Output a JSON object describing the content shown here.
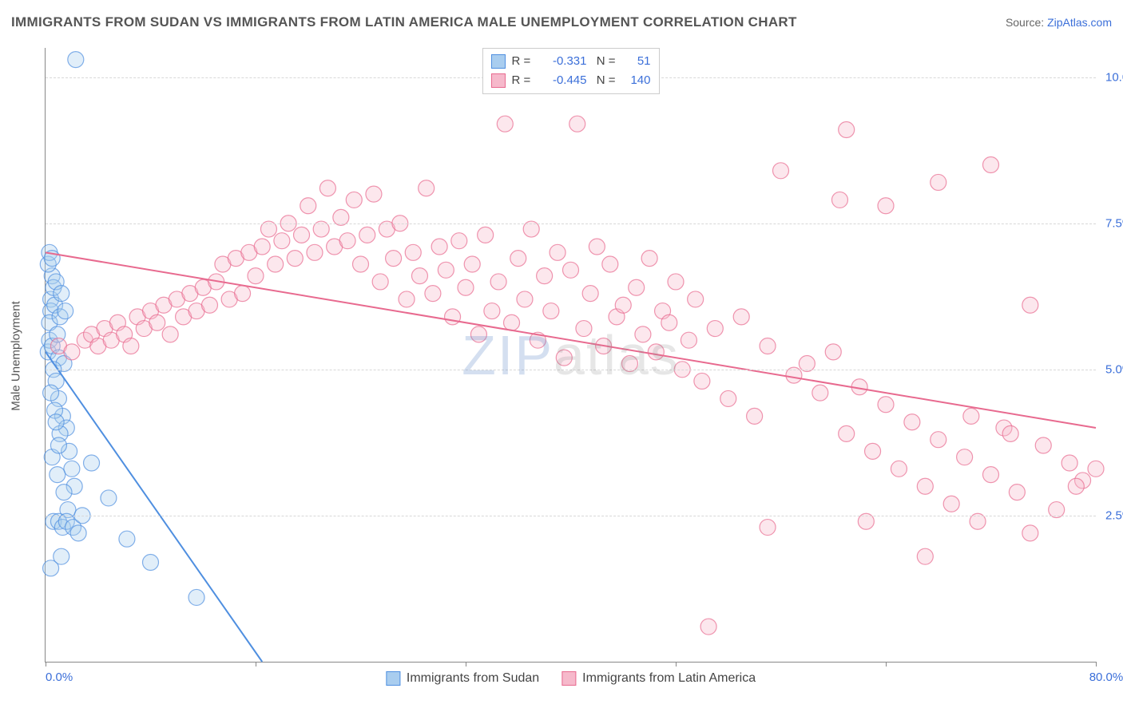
{
  "title": "IMMIGRANTS FROM SUDAN VS IMMIGRANTS FROM LATIN AMERICA MALE UNEMPLOYMENT CORRELATION CHART",
  "source_prefix": "Source: ",
  "source_link": "ZipAtlas.com",
  "yaxis_label": "Male Unemployment",
  "watermark": {
    "z_part": "ZIP",
    "rest_part": "atlas"
  },
  "chart": {
    "type": "scatter",
    "background_color": "#ffffff",
    "grid_color": "#d8d8d8",
    "grid_dash": "4,4",
    "axis_color": "#888888",
    "xlim": [
      0,
      80
    ],
    "ylim": [
      0,
      10.5
    ],
    "xticks": [
      0,
      16,
      32,
      48,
      64,
      80
    ],
    "xtick_labels_shown": {
      "0": "0.0%",
      "80": "80.0%"
    },
    "yticks": [
      2.5,
      5.0,
      7.5,
      10.0
    ],
    "ytick_labels": [
      "2.5%",
      "5.0%",
      "7.5%",
      "10.0%"
    ],
    "marker_radius": 10,
    "marker_fill_opacity": 0.35,
    "marker_stroke_width": 1.2,
    "trend_line_width": 2,
    "series": [
      {
        "name": "Immigrants from Sudan",
        "color": "#4f8fe0",
        "fill": "#a9cdef",
        "R": "-0.331",
        "N": "51",
        "trend": {
          "x1": 0,
          "y1": 5.3,
          "x2": 16.5,
          "y2": 0
        },
        "points": [
          [
            0.2,
            5.3
          ],
          [
            0.3,
            5.5
          ],
          [
            0.4,
            6.2
          ],
          [
            0.5,
            6.6
          ],
          [
            0.6,
            6.4
          ],
          [
            0.4,
            6.0
          ],
          [
            0.7,
            6.1
          ],
          [
            0.8,
            6.5
          ],
          [
            0.3,
            5.8
          ],
          [
            0.5,
            5.4
          ],
          [
            0.9,
            5.6
          ],
          [
            1.0,
            5.2
          ],
          [
            1.1,
            5.9
          ],
          [
            1.2,
            6.3
          ],
          [
            1.4,
            5.1
          ],
          [
            1.5,
            6.0
          ],
          [
            0.6,
            5.0
          ],
          [
            0.8,
            4.8
          ],
          [
            1.0,
            4.5
          ],
          [
            1.3,
            4.2
          ],
          [
            1.6,
            4.0
          ],
          [
            0.4,
            4.6
          ],
          [
            0.7,
            4.3
          ],
          [
            1.1,
            3.9
          ],
          [
            1.8,
            3.6
          ],
          [
            2.0,
            3.3
          ],
          [
            2.2,
            3.0
          ],
          [
            0.5,
            3.5
          ],
          [
            0.9,
            3.2
          ],
          [
            1.4,
            2.9
          ],
          [
            1.7,
            2.6
          ],
          [
            0.6,
            2.4
          ],
          [
            1.0,
            2.4
          ],
          [
            1.3,
            2.3
          ],
          [
            1.6,
            2.4
          ],
          [
            2.1,
            2.3
          ],
          [
            2.5,
            2.2
          ],
          [
            2.8,
            2.5
          ],
          [
            0.4,
            1.6
          ],
          [
            1.2,
            1.8
          ],
          [
            2.3,
            10.3
          ],
          [
            3.5,
            3.4
          ],
          [
            4.8,
            2.8
          ],
          [
            6.2,
            2.1
          ],
          [
            8.0,
            1.7
          ],
          [
            11.5,
            1.1
          ],
          [
            0.2,
            6.8
          ],
          [
            0.3,
            7.0
          ],
          [
            0.5,
            6.9
          ],
          [
            0.8,
            4.1
          ],
          [
            1.0,
            3.7
          ]
        ]
      },
      {
        "name": "Immigrants from Latin America",
        "color": "#e86a8f",
        "fill": "#f6b9cb",
        "R": "-0.445",
        "N": "140",
        "trend": {
          "x1": 0,
          "y1": 7.0,
          "x2": 80,
          "y2": 4.0
        },
        "points": [
          [
            1,
            5.4
          ],
          [
            2,
            5.3
          ],
          [
            3,
            5.5
          ],
          [
            3.5,
            5.6
          ],
          [
            4,
            5.4
          ],
          [
            4.5,
            5.7
          ],
          [
            5,
            5.5
          ],
          [
            5.5,
            5.8
          ],
          [
            6,
            5.6
          ],
          [
            6.5,
            5.4
          ],
          [
            7,
            5.9
          ],
          [
            7.5,
            5.7
          ],
          [
            8,
            6.0
          ],
          [
            8.5,
            5.8
          ],
          [
            9,
            6.1
          ],
          [
            9.5,
            5.6
          ],
          [
            10,
            6.2
          ],
          [
            10.5,
            5.9
          ],
          [
            11,
            6.3
          ],
          [
            11.5,
            6.0
          ],
          [
            12,
            6.4
          ],
          [
            12.5,
            6.1
          ],
          [
            13,
            6.5
          ],
          [
            13.5,
            6.8
          ],
          [
            14,
            6.2
          ],
          [
            14.5,
            6.9
          ],
          [
            15,
            6.3
          ],
          [
            15.5,
            7.0
          ],
          [
            16,
            6.6
          ],
          [
            16.5,
            7.1
          ],
          [
            17,
            7.4
          ],
          [
            17.5,
            6.8
          ],
          [
            18,
            7.2
          ],
          [
            18.5,
            7.5
          ],
          [
            19,
            6.9
          ],
          [
            19.5,
            7.3
          ],
          [
            20,
            7.8
          ],
          [
            20.5,
            7.0
          ],
          [
            21,
            7.4
          ],
          [
            21.5,
            8.1
          ],
          [
            22,
            7.1
          ],
          [
            22.5,
            7.6
          ],
          [
            23,
            7.2
          ],
          [
            23.5,
            7.9
          ],
          [
            24,
            6.8
          ],
          [
            24.5,
            7.3
          ],
          [
            25,
            8.0
          ],
          [
            25.5,
            6.5
          ],
          [
            26,
            7.4
          ],
          [
            26.5,
            6.9
          ],
          [
            27,
            7.5
          ],
          [
            27.5,
            6.2
          ],
          [
            28,
            7.0
          ],
          [
            28.5,
            6.6
          ],
          [
            29,
            8.1
          ],
          [
            29.5,
            6.3
          ],
          [
            30,
            7.1
          ],
          [
            30.5,
            6.7
          ],
          [
            31,
            5.9
          ],
          [
            31.5,
            7.2
          ],
          [
            32,
            6.4
          ],
          [
            32.5,
            6.8
          ],
          [
            33,
            5.6
          ],
          [
            33.5,
            7.3
          ],
          [
            34,
            6.0
          ],
          [
            34.5,
            6.5
          ],
          [
            35,
            9.2
          ],
          [
            35.5,
            5.8
          ],
          [
            36,
            6.9
          ],
          [
            36.5,
            6.2
          ],
          [
            37,
            7.4
          ],
          [
            37.5,
            5.5
          ],
          [
            38,
            6.6
          ],
          [
            38.5,
            6.0
          ],
          [
            39,
            7.0
          ],
          [
            39.5,
            5.2
          ],
          [
            40,
            6.7
          ],
          [
            40.5,
            9.2
          ],
          [
            41,
            5.7
          ],
          [
            41.5,
            6.3
          ],
          [
            42,
            7.1
          ],
          [
            42.5,
            5.4
          ],
          [
            43,
            6.8
          ],
          [
            43.5,
            5.9
          ],
          [
            44,
            6.1
          ],
          [
            44.5,
            5.1
          ],
          [
            45,
            6.4
          ],
          [
            45.5,
            5.6
          ],
          [
            46,
            6.9
          ],
          [
            46.5,
            5.3
          ],
          [
            47,
            6.0
          ],
          [
            47.5,
            5.8
          ],
          [
            48,
            6.5
          ],
          [
            48.5,
            5.0
          ],
          [
            49,
            5.5
          ],
          [
            49.5,
            6.2
          ],
          [
            50,
            4.8
          ],
          [
            51,
            5.7
          ],
          [
            52,
            4.5
          ],
          [
            53,
            5.9
          ],
          [
            54,
            4.2
          ],
          [
            55,
            5.4
          ],
          [
            56,
            8.4
          ],
          [
            57,
            4.9
          ],
          [
            58,
            5.1
          ],
          [
            59,
            4.6
          ],
          [
            60,
            5.3
          ],
          [
            61,
            3.9
          ],
          [
            61,
            9.1
          ],
          [
            62,
            4.7
          ],
          [
            63,
            3.6
          ],
          [
            64,
            4.4
          ],
          [
            64,
            7.8
          ],
          [
            65,
            3.3
          ],
          [
            66,
            4.1
          ],
          [
            67,
            3.0
          ],
          [
            68,
            3.8
          ],
          [
            68,
            8.2
          ],
          [
            69,
            2.7
          ],
          [
            70,
            3.5
          ],
          [
            71,
            2.4
          ],
          [
            72,
            3.2
          ],
          [
            72,
            8.5
          ],
          [
            73,
            4.0
          ],
          [
            74,
            2.9
          ],
          [
            75,
            2.2
          ],
          [
            75,
            6.1
          ],
          [
            76,
            3.7
          ],
          [
            77,
            2.6
          ],
          [
            78,
            3.4
          ],
          [
            79,
            3.1
          ],
          [
            80,
            3.3
          ],
          [
            50.5,
            0.6
          ],
          [
            60.5,
            7.9
          ],
          [
            55,
            2.3
          ],
          [
            62.5,
            2.4
          ],
          [
            67,
            1.8
          ],
          [
            70.5,
            4.2
          ],
          [
            73.5,
            3.9
          ],
          [
            78.5,
            3.0
          ]
        ]
      }
    ]
  }
}
